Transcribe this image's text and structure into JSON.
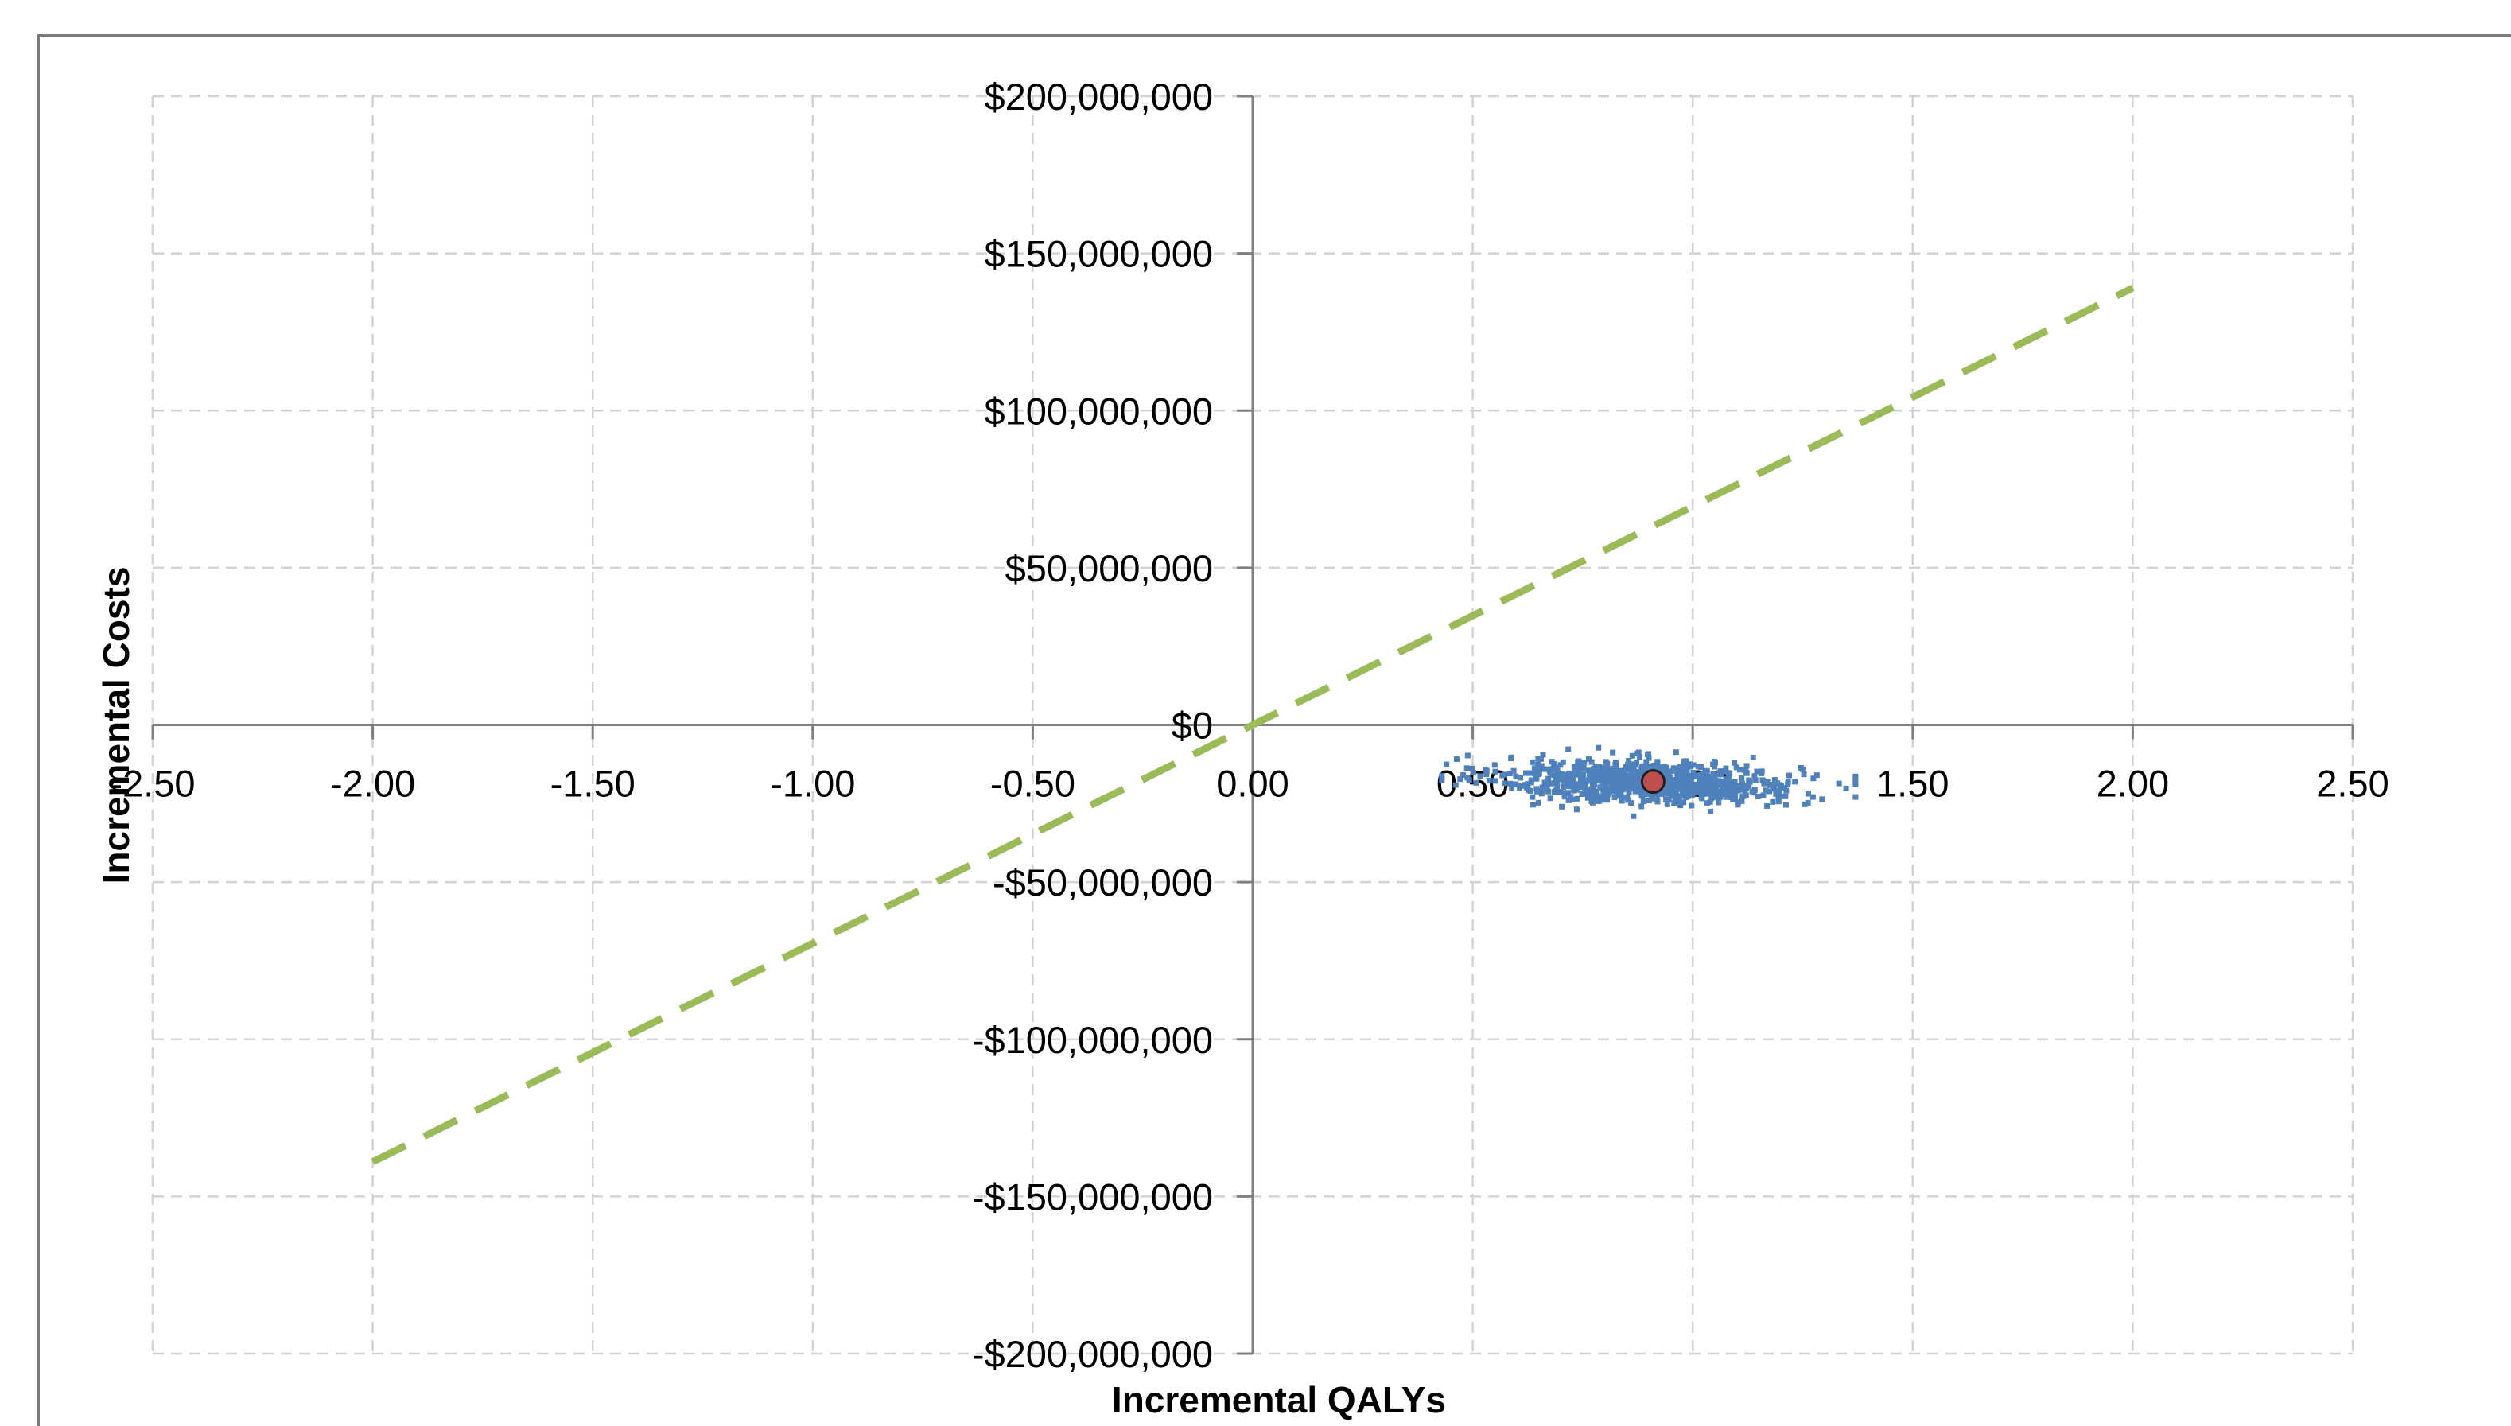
{
  "chart_data": {
    "type": "scatter",
    "title": "",
    "xlabel": "Incremental QALYs",
    "ylabel": "Incremental Costs",
    "xlim": [
      -2.5,
      2.5
    ],
    "ylim": [
      -200000000,
      200000000
    ],
    "x_ticks": [
      "-2.50",
      "-2.00",
      "-1.50",
      "-1.00",
      "-0.50",
      "0.00",
      "0.50",
      "1.00",
      "1.50",
      "2.00",
      "2.50"
    ],
    "x_tick_values": [
      -2.5,
      -2.0,
      -1.5,
      -1.0,
      -0.5,
      0.0,
      0.5,
      1.0,
      1.5,
      2.0,
      2.5
    ],
    "y_ticks": [
      "$200,000,000",
      "$150,000,000",
      "$100,000,000",
      "$50,000,000",
      "$0",
      "-$50,000,000",
      "-$100,000,000",
      "-$150,000,000",
      "-$200,000,000"
    ],
    "y_tick_values": [
      200000000,
      150000000,
      100000000,
      50000000,
      0,
      -50000000,
      -100000000,
      -150000000,
      -200000000
    ],
    "grid": true,
    "legend": "none",
    "series": [
      {
        "kind": "scatter",
        "color": "#4f81bd",
        "cloud": {
          "count": 900,
          "x_mean": 0.9,
          "x_sd": 0.17,
          "y_mean": -18000000,
          "y_sd": 3400000,
          "x_range": [
            0.43,
            1.37
          ],
          "y_range": [
            -30000000,
            -6000000
          ],
          "slope_per_qaly": -4000000
        }
      },
      {
        "kind": "point",
        "color": "#c0504d",
        "x": 0.91,
        "y": -18000000
      },
      {
        "kind": "line",
        "style": "dashed",
        "color": "#9bbb59",
        "points": [
          [
            -2.0,
            -139000000
          ],
          [
            2.0,
            139000000
          ]
        ]
      }
    ]
  }
}
